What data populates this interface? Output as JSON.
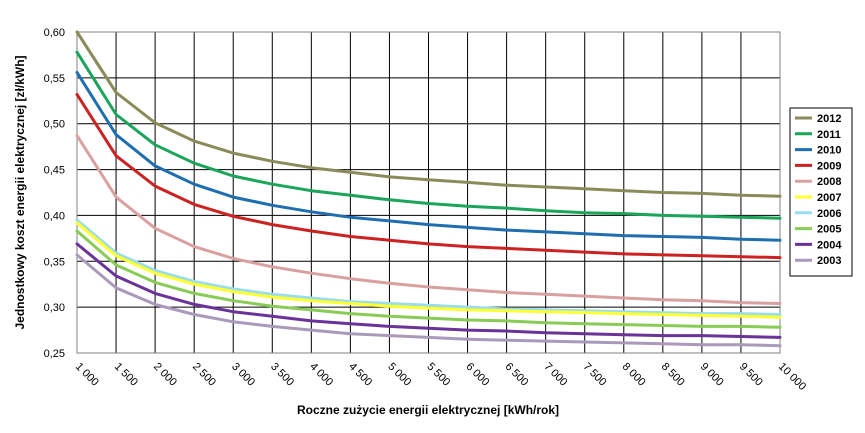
{
  "chart_data": {
    "type": "line",
    "xlabel": "Roczne zużycie energii elektrycznej [kWh/rok]",
    "ylabel": "Jednostkowy koszt energii elektrycznej [zł/kWh]",
    "xlim": [
      1000,
      10000
    ],
    "ylim": [
      0.25,
      0.6
    ],
    "x_ticks": [
      1000,
      1500,
      2000,
      2500,
      3000,
      3500,
      4000,
      4500,
      5000,
      5500,
      6000,
      6500,
      7000,
      7500,
      8000,
      8500,
      9000,
      9500,
      10000
    ],
    "x_tick_labels": [
      "1 000",
      "1 500",
      "2 000",
      "2 500",
      "3 000",
      "3 500",
      "4 000",
      "4 500",
      "5 000",
      "5 500",
      "6 000",
      "6 500",
      "7 000",
      "7 500",
      "8 000",
      "8 500",
      "9 000",
      "9 500",
      "10 000"
    ],
    "y_ticks": [
      0.25,
      0.3,
      0.35,
      0.4,
      0.45,
      0.5,
      0.55,
      0.6
    ],
    "y_tick_labels": [
      "0,25",
      "0,30",
      "0,35",
      "0,40",
      "0,45",
      "0,50",
      "0,55",
      "0,60"
    ],
    "grid": true,
    "legend_position": "right",
    "x": [
      1000,
      1500,
      2000,
      2500,
      3000,
      3500,
      4000,
      4500,
      5000,
      5500,
      6000,
      6500,
      7000,
      7500,
      8000,
      8500,
      9000,
      9500,
      10000
    ],
    "series": [
      {
        "name": "2012",
        "color": "#8b8b5a",
        "values": [
          0.6,
          0.534,
          0.501,
          0.481,
          0.468,
          0.459,
          0.452,
          0.447,
          0.442,
          0.439,
          0.436,
          0.433,
          0.431,
          0.429,
          0.427,
          0.425,
          0.424,
          0.422,
          0.421
        ]
      },
      {
        "name": "2011",
        "color": "#1aa55a",
        "values": [
          0.578,
          0.51,
          0.477,
          0.457,
          0.443,
          0.434,
          0.427,
          0.422,
          0.417,
          0.413,
          0.41,
          0.408,
          0.405,
          0.403,
          0.402,
          0.4,
          0.399,
          0.398,
          0.397
        ]
      },
      {
        "name": "2010",
        "color": "#1f6eb0",
        "values": [
          0.556,
          0.488,
          0.454,
          0.434,
          0.42,
          0.411,
          0.404,
          0.398,
          0.394,
          0.39,
          0.387,
          0.384,
          0.382,
          0.38,
          0.378,
          0.377,
          0.376,
          0.374,
          0.373
        ]
      },
      {
        "name": "2009",
        "color": "#cc2222",
        "values": [
          0.532,
          0.465,
          0.432,
          0.412,
          0.399,
          0.39,
          0.383,
          0.377,
          0.373,
          0.369,
          0.366,
          0.364,
          0.362,
          0.36,
          0.358,
          0.357,
          0.356,
          0.355,
          0.354
        ]
      },
      {
        "name": "2008",
        "color": "#d9a0a0",
        "values": [
          0.487,
          0.42,
          0.386,
          0.366,
          0.353,
          0.344,
          0.337,
          0.331,
          0.326,
          0.322,
          0.319,
          0.316,
          0.314,
          0.312,
          0.31,
          0.308,
          0.307,
          0.305,
          0.304
        ]
      },
      {
        "name": "2007",
        "color": "#ffff33",
        "values": [
          0.392,
          0.356,
          0.337,
          0.325,
          0.317,
          0.311,
          0.307,
          0.304,
          0.301,
          0.299,
          0.297,
          0.296,
          0.295,
          0.294,
          0.293,
          0.292,
          0.291,
          0.29,
          0.289
        ]
      },
      {
        "name": "2006",
        "color": "#99ddee",
        "values": [
          0.395,
          0.359,
          0.34,
          0.328,
          0.32,
          0.314,
          0.31,
          0.306,
          0.304,
          0.302,
          0.3,
          0.298,
          0.297,
          0.296,
          0.295,
          0.294,
          0.293,
          0.293,
          0.292
        ]
      },
      {
        "name": "2005",
        "color": "#88cc55",
        "values": [
          0.383,
          0.346,
          0.327,
          0.315,
          0.307,
          0.301,
          0.297,
          0.293,
          0.29,
          0.288,
          0.286,
          0.285,
          0.283,
          0.282,
          0.281,
          0.28,
          0.279,
          0.279,
          0.278
        ]
      },
      {
        "name": "2004",
        "color": "#6a3399",
        "values": [
          0.369,
          0.334,
          0.315,
          0.303,
          0.295,
          0.29,
          0.285,
          0.282,
          0.279,
          0.277,
          0.275,
          0.274,
          0.272,
          0.271,
          0.27,
          0.269,
          0.269,
          0.268,
          0.267
        ]
      },
      {
        "name": "2003",
        "color": "#aa99bb",
        "values": [
          0.357,
          0.321,
          0.303,
          0.292,
          0.284,
          0.279,
          0.275,
          0.271,
          0.269,
          0.267,
          0.265,
          0.264,
          0.263,
          0.262,
          0.261,
          0.26,
          0.259,
          0.259,
          0.258
        ]
      }
    ]
  }
}
